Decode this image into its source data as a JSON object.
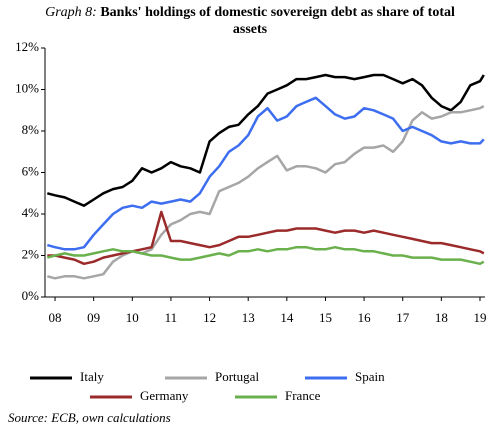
{
  "chart_data": {
    "type": "line",
    "title_prefix": "Graph 8:",
    "title": "Banks' holdings of domestic sovereign debt as share of total assets",
    "source": "Source: ECB, own calculations",
    "x": [
      7.8,
      8.0,
      8.25,
      8.5,
      8.75,
      9.0,
      9.25,
      9.5,
      9.75,
      10.0,
      10.25,
      10.5,
      10.75,
      11.0,
      11.25,
      11.5,
      11.75,
      12.0,
      12.25,
      12.5,
      12.75,
      13.0,
      13.25,
      13.5,
      13.75,
      14.0,
      14.25,
      14.5,
      14.75,
      15.0,
      15.25,
      15.5,
      15.75,
      16.0,
      16.25,
      16.5,
      16.75,
      17.0,
      17.25,
      17.5,
      17.75,
      18.0,
      18.25,
      18.5,
      18.75,
      19.0,
      19.1
    ],
    "series": [
      {
        "name": "Italy",
        "color": "#000000",
        "values": [
          5.0,
          4.9,
          4.8,
          4.6,
          4.4,
          4.7,
          5.0,
          5.2,
          5.3,
          5.6,
          6.2,
          6.0,
          6.2,
          6.5,
          6.3,
          6.2,
          6.0,
          7.5,
          7.9,
          8.2,
          8.3,
          8.8,
          9.2,
          9.8,
          10.0,
          10.2,
          10.5,
          10.5,
          10.6,
          10.7,
          10.6,
          10.6,
          10.5,
          10.6,
          10.7,
          10.7,
          10.5,
          10.3,
          10.5,
          10.2,
          9.6,
          9.2,
          9.0,
          9.4,
          10.2,
          10.4,
          10.7
        ]
      },
      {
        "name": "Portugal",
        "color": "#a6a6a6",
        "values": [
          1.0,
          0.9,
          1.0,
          1.0,
          0.9,
          1.0,
          1.1,
          1.7,
          2.0,
          2.2,
          2.1,
          2.3,
          3.0,
          3.5,
          3.7,
          4.0,
          4.1,
          4.0,
          5.1,
          5.3,
          5.5,
          5.8,
          6.2,
          6.5,
          6.8,
          6.1,
          6.3,
          6.3,
          6.2,
          6.0,
          6.4,
          6.5,
          6.9,
          7.2,
          7.2,
          7.3,
          7.0,
          7.5,
          8.5,
          8.9,
          8.6,
          8.7,
          8.9,
          8.9,
          9.0,
          9.1,
          9.2
        ]
      },
      {
        "name": "Spain",
        "color": "#3d6ef0",
        "values": [
          2.5,
          2.4,
          2.3,
          2.3,
          2.4,
          3.0,
          3.5,
          4.0,
          4.3,
          4.4,
          4.3,
          4.6,
          4.5,
          4.6,
          4.7,
          4.6,
          5.0,
          5.8,
          6.3,
          7.0,
          7.3,
          7.8,
          8.7,
          9.1,
          8.5,
          8.7,
          9.2,
          9.4,
          9.6,
          9.2,
          8.8,
          8.6,
          8.7,
          9.1,
          9.0,
          8.8,
          8.6,
          8.0,
          8.2,
          8.0,
          7.8,
          7.5,
          7.4,
          7.5,
          7.4,
          7.4,
          7.6
        ]
      },
      {
        "name": "Germany",
        "color": "#9b2a2a",
        "values": [
          2.0,
          2.0,
          1.9,
          1.8,
          1.6,
          1.7,
          1.9,
          2.0,
          2.1,
          2.2,
          2.3,
          2.4,
          4.1,
          2.7,
          2.7,
          2.6,
          2.5,
          2.4,
          2.5,
          2.7,
          2.9,
          2.9,
          3.0,
          3.1,
          3.2,
          3.2,
          3.3,
          3.3,
          3.3,
          3.2,
          3.1,
          3.2,
          3.2,
          3.1,
          3.2,
          3.1,
          3.0,
          2.9,
          2.8,
          2.7,
          2.6,
          2.6,
          2.5,
          2.4,
          2.3,
          2.2,
          2.1
        ]
      },
      {
        "name": "France",
        "color": "#6ab04c",
        "values": [
          1.9,
          2.0,
          2.1,
          2.0,
          2.0,
          2.1,
          2.2,
          2.3,
          2.2,
          2.2,
          2.1,
          2.0,
          2.0,
          1.9,
          1.8,
          1.8,
          1.9,
          2.0,
          2.1,
          2.0,
          2.2,
          2.2,
          2.3,
          2.2,
          2.3,
          2.3,
          2.4,
          2.4,
          2.3,
          2.3,
          2.4,
          2.3,
          2.3,
          2.2,
          2.2,
          2.1,
          2.0,
          2.0,
          1.9,
          1.9,
          1.9,
          1.8,
          1.8,
          1.8,
          1.7,
          1.6,
          1.7
        ]
      }
    ],
    "xlim": [
      7.74,
      19.13
    ],
    "xticks": [
      {
        "value": 8,
        "label": "08"
      },
      {
        "value": 9,
        "label": "09"
      },
      10,
      11,
      12,
      13,
      14,
      15,
      16,
      17,
      18,
      19
    ],
    "ylim": [
      0,
      12
    ],
    "yticks": [
      {
        "value": 0,
        "label": "0%"
      },
      {
        "value": 2,
        "label": "2%"
      },
      {
        "value": 4,
        "label": "4%"
      },
      {
        "value": 6,
        "label": "6%"
      },
      {
        "value": 8,
        "label": "8%"
      },
      {
        "value": 10,
        "label": "10%"
      },
      {
        "value": 12,
        "label": "12%"
      }
    ],
    "grid": false
  }
}
